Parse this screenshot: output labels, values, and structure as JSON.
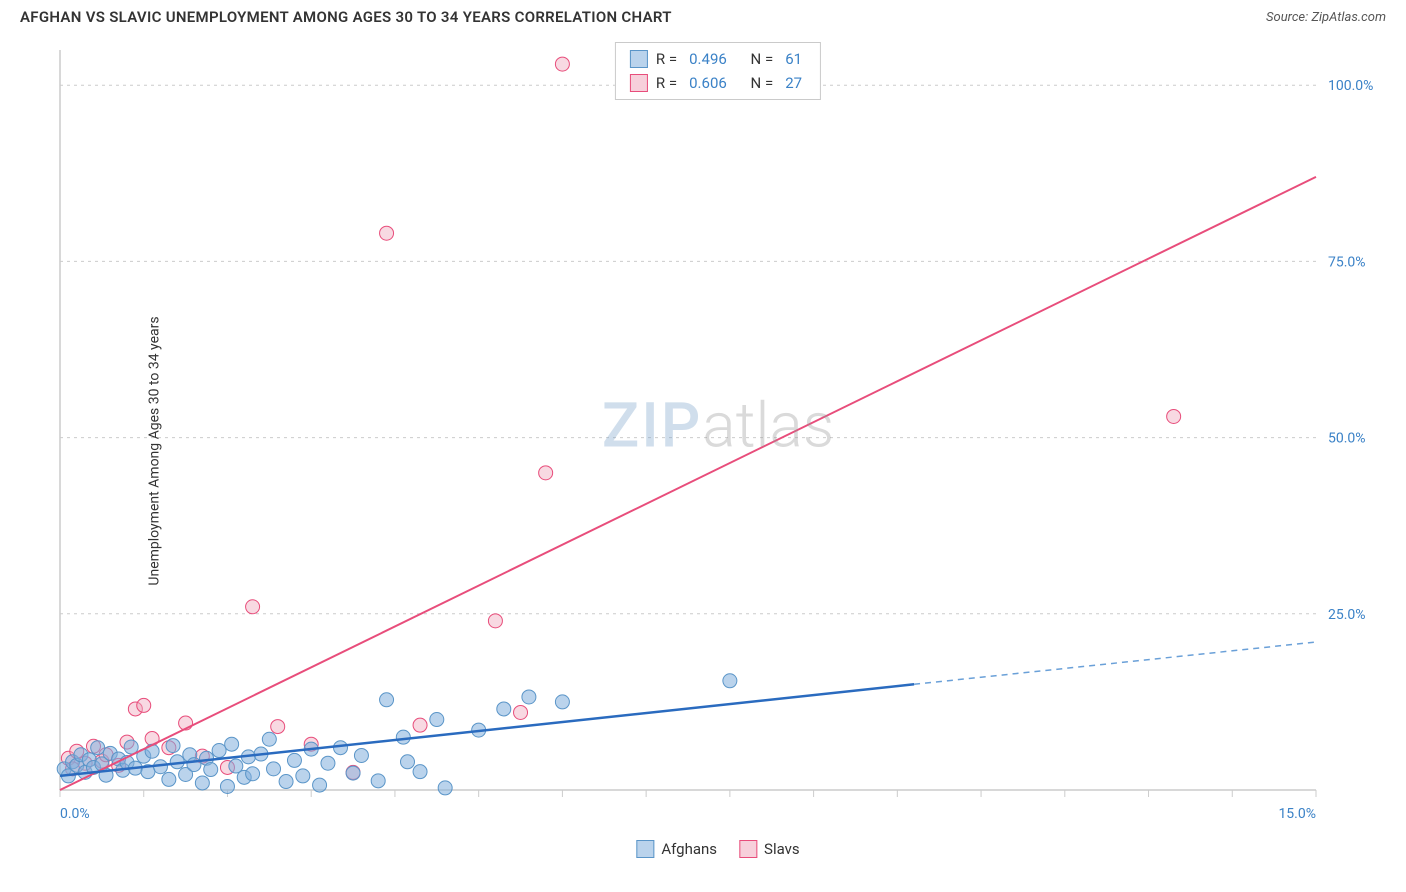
{
  "header": {
    "title": "AFGHAN VS SLAVIC UNEMPLOYMENT AMONG AGES 30 TO 34 YEARS CORRELATION CHART",
    "source_prefix": "Source: ",
    "source_name": "ZipAtlas.com"
  },
  "ylabel": "Unemployment Among Ages 30 to 34 years",
  "watermark": {
    "part1": "ZIP",
    "part2": "atlas"
  },
  "chart": {
    "type": "scatter-with-regression",
    "xlim": [
      0,
      15
    ],
    "ylim": [
      0,
      105
    ],
    "yticks": [
      25,
      50,
      75,
      100
    ],
    "ytick_labels": [
      "25.0%",
      "50.0%",
      "75.0%",
      "100.0%"
    ],
    "x_label_min": "0.0%",
    "x_label_max": "15.0%",
    "xtick_minor": [
      0,
      1,
      2,
      3,
      4,
      5,
      6,
      7,
      8,
      9,
      10,
      11,
      12,
      13,
      14,
      15
    ],
    "background_color": "#ffffff",
    "grid_color": "#cccccc",
    "marker_radius": 7,
    "colors": {
      "blue_fill": "rgba(130,175,220,0.55)",
      "blue_stroke": "#5a95c8",
      "blue_line": "#2a6bbf",
      "pink_fill": "rgba(240,170,190,0.45)",
      "pink_stroke": "#e84d7b",
      "pink_line": "#e84d7b",
      "axis_text": "#3b82c7"
    },
    "series_blue": {
      "label": "Afghans",
      "R_label": "R =",
      "R": "0.496",
      "N_label": "N =",
      "N": "61",
      "regression": {
        "x1": 0,
        "y1": 2.0,
        "x2_solid": 10.2,
        "y2_solid": 15.0,
        "x2": 15.0,
        "y2": 21.0
      },
      "points": [
        [
          0.05,
          3
        ],
        [
          0.1,
          2
        ],
        [
          0.15,
          4
        ],
        [
          0.2,
          3.5
        ],
        [
          0.25,
          5
        ],
        [
          0.3,
          2.5
        ],
        [
          0.35,
          4.3
        ],
        [
          0.4,
          3.2
        ],
        [
          0.45,
          6
        ],
        [
          0.5,
          3.7
        ],
        [
          0.55,
          2.1
        ],
        [
          0.6,
          5.2
        ],
        [
          0.7,
          4.4
        ],
        [
          0.75,
          2.8
        ],
        [
          0.8,
          3.9
        ],
        [
          0.85,
          6.1
        ],
        [
          0.9,
          3.1
        ],
        [
          1.0,
          4.8
        ],
        [
          1.05,
          2.6
        ],
        [
          1.1,
          5.5
        ],
        [
          1.2,
          3.3
        ],
        [
          1.3,
          1.5
        ],
        [
          1.35,
          6.3
        ],
        [
          1.4,
          4.0
        ],
        [
          1.5,
          2.2
        ],
        [
          1.55,
          5.0
        ],
        [
          1.6,
          3.6
        ],
        [
          1.7,
          1.0
        ],
        [
          1.75,
          4.5
        ],
        [
          1.8,
          2.9
        ],
        [
          1.9,
          5.6
        ],
        [
          2.0,
          0.5
        ],
        [
          2.05,
          6.5
        ],
        [
          2.1,
          3.4
        ],
        [
          2.2,
          1.8
        ],
        [
          2.25,
          4.7
        ],
        [
          2.3,
          2.3
        ],
        [
          2.4,
          5.1
        ],
        [
          2.5,
          7.2
        ],
        [
          2.55,
          3.0
        ],
        [
          2.7,
          1.2
        ],
        [
          2.8,
          4.2
        ],
        [
          2.9,
          2.0
        ],
        [
          3.0,
          5.8
        ],
        [
          3.1,
          0.7
        ],
        [
          3.2,
          3.8
        ],
        [
          3.35,
          6.0
        ],
        [
          3.5,
          2.4
        ],
        [
          3.6,
          4.9
        ],
        [
          3.8,
          1.3
        ],
        [
          3.9,
          12.8
        ],
        [
          4.1,
          7.5
        ],
        [
          4.15,
          4.0
        ],
        [
          4.3,
          2.6
        ],
        [
          4.5,
          10.0
        ],
        [
          4.6,
          0.3
        ],
        [
          5.0,
          8.5
        ],
        [
          5.3,
          11.5
        ],
        [
          5.6,
          13.2
        ],
        [
          6.0,
          12.5
        ],
        [
          8.0,
          15.5
        ]
      ]
    },
    "series_pink": {
      "label": "Slavs",
      "R_label": "R =",
      "R": "0.606",
      "N_label": "N =",
      "N": "27",
      "regression": {
        "x1": 0,
        "y1": 0.0,
        "x2": 15.0,
        "y2": 87.0
      },
      "points": [
        [
          0.1,
          4.5
        ],
        [
          0.15,
          3
        ],
        [
          0.2,
          5.5
        ],
        [
          0.3,
          3.8
        ],
        [
          0.4,
          6.2
        ],
        [
          0.5,
          4.1
        ],
        [
          0.55,
          5.0
        ],
        [
          0.7,
          3.5
        ],
        [
          0.8,
          6.8
        ],
        [
          0.9,
          11.5
        ],
        [
          1.0,
          12.0
        ],
        [
          1.1,
          7.3
        ],
        [
          1.3,
          6.0
        ],
        [
          1.5,
          9.5
        ],
        [
          1.7,
          4.8
        ],
        [
          2.0,
          3.2
        ],
        [
          2.3,
          26.0
        ],
        [
          2.6,
          9.0
        ],
        [
          3.0,
          6.5
        ],
        [
          3.5,
          2.5
        ],
        [
          3.9,
          79.0
        ],
        [
          4.3,
          9.2
        ],
        [
          5.2,
          24.0
        ],
        [
          5.5,
          11.0
        ],
        [
          5.8,
          45.0
        ],
        [
          6.0,
          103.0
        ],
        [
          13.3,
          53.0
        ]
      ]
    }
  },
  "bottom_legend": {
    "item1": "Afghans",
    "item2": "Slavs"
  }
}
